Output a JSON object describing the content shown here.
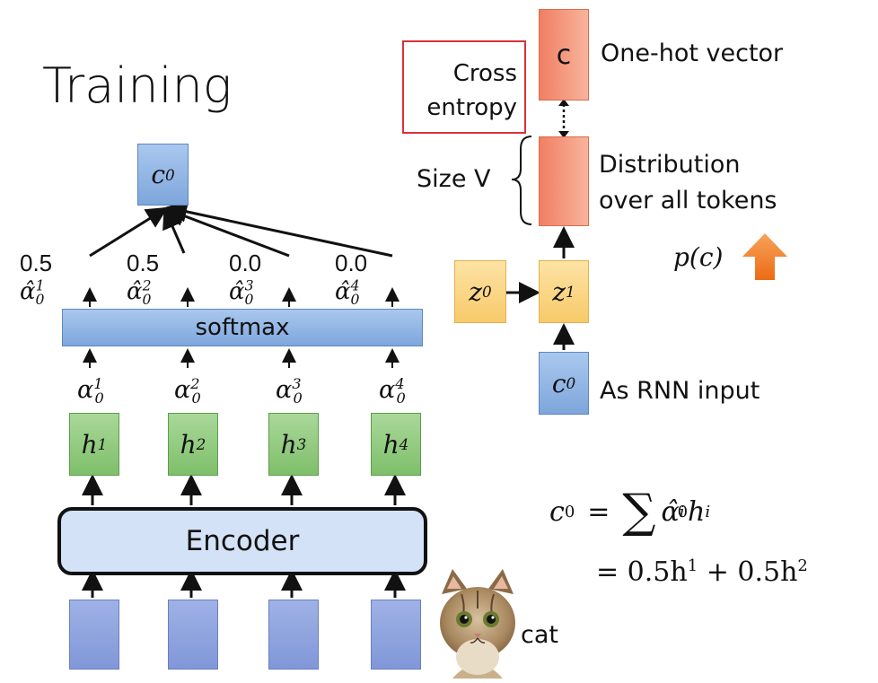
{
  "title": "Training",
  "left": {
    "c0_label": "c",
    "c0_sup": "0",
    "alpha_hat": [
      {
        "value": "0.5",
        "sup": "1"
      },
      {
        "value": "0.5",
        "sup": "2"
      },
      {
        "value": "0.0",
        "sup": "3"
      },
      {
        "value": "0.0",
        "sup": "4"
      }
    ],
    "alpha_symbol": "α",
    "alpha_sub": "0",
    "softmax_label": "softmax",
    "alpha": [
      {
        "sup": "1"
      },
      {
        "sup": "2"
      },
      {
        "sup": "3"
      },
      {
        "sup": "4"
      }
    ],
    "h": [
      {
        "label": "h",
        "sup": "1"
      },
      {
        "label": "h",
        "sup": "2"
      },
      {
        "label": "h",
        "sup": "3"
      },
      {
        "label": "h",
        "sup": "4"
      }
    ],
    "encoder_label": "Encoder",
    "cat_label": "cat"
  },
  "right": {
    "cross_entropy_line1": "Cross",
    "cross_entropy_line2": "entropy",
    "onehot_box_label": "c",
    "onehot_label": "One-hot vector",
    "distribution_line1": "Distribution",
    "distribution_line2": "over all tokens",
    "size_label": "Size V",
    "pc_label": "p(c)",
    "z0_label": "z",
    "z0_sup": "0",
    "z1_label": "z",
    "z1_sup": "1",
    "c0_label": "c",
    "c0_sup": "0",
    "rnn_input_label": "As RNN input"
  },
  "formula": {
    "line1_lhs": "c",
    "line1_lhs_sup": "0",
    "line1_eq": "=",
    "line1_sum": "∑",
    "line1_term_alpha": "α̂",
    "line1_term_alpha_sup": "i",
    "line1_term_alpha_sub": "0",
    "line1_term_h": "h",
    "line1_term_h_sup": "i",
    "line2": "= 0.5h",
    "line2_sup1": "1",
    "line2_mid": " + 0.5h",
    "line2_sup2": "2"
  },
  "colors": {
    "green": "#8cc97a",
    "blue": "#93b6e6",
    "orange": "#f4957a",
    "yellow": "#fbd485",
    "red_border": "#d9323a",
    "arrow_orange": "#f07c1e"
  }
}
